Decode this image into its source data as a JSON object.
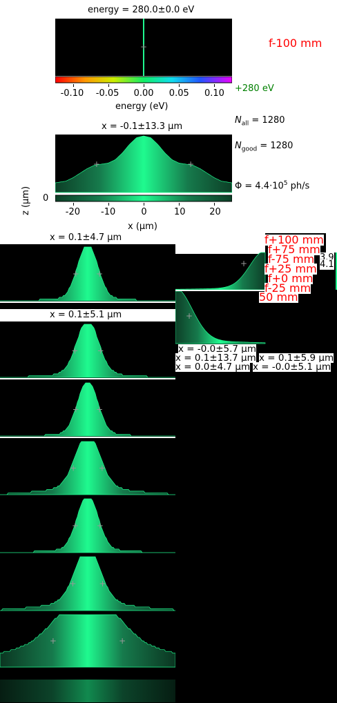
{
  "energy_title": "energy = 280.0±0.0 eV",
  "energy_axis_label": "energy (eV)",
  "energy_ticks": [
    "-0.10",
    "-0.05",
    "0.00",
    "0.05",
    "0.10"
  ],
  "focus_label": "f-100 mm",
  "energy_center_label": "+280 eV",
  "n_all": "N",
  "n_all_sub": "all",
  "n_all_value": " = 1280",
  "n_good": "N",
  "n_good_sub": "good",
  "n_good_value": " = 1280",
  "flux_prefix": "Φ = 4.4·10",
  "flux_exp": "5",
  "flux_suffix": " ph/s",
  "main_title": "x = -0.1±13.3 μm",
  "xlabel": "x (μm)",
  "ylabel": "z (μm)",
  "x_ticks": [
    "-20",
    "-10",
    "0",
    "10",
    "20"
  ],
  "z_tick": "0",
  "stack_titles": [
    "x = 0.1±4.7 μm",
    "x = 0.1±5.1 μm"
  ],
  "right_titles": [
    "x = -0.0±5.7 μm",
    "x = 0.1±13.7 μm",
    "x = 0.1±5.9 μm",
    "x = 0.0±4.7 μm",
    "x = -0.0±5.1 μm"
  ],
  "focus_labels": [
    "f+100 mm",
    "f+75 mm",
    "f-75 mm",
    "f+25 mm",
    "f+0 mm",
    "f-25 mm",
    "50 mm"
  ],
  "clipped_numbers": [
    "3.9",
    "4.1"
  ],
  "colors": {
    "beam": "#1ffa8f",
    "beam_dark": "#0e5a38",
    "red": "#ff0000",
    "green": "#008000"
  },
  "chart_data": [
    {
      "type": "heatmap",
      "title": "energy = 280.0±0.0 eV",
      "xlabel": "energy (eV)",
      "xlim": [
        -0.125,
        0.125
      ],
      "x_ticks": [
        -0.1,
        -0.05,
        0.0,
        0.05,
        0.1
      ],
      "peak_energy": 0.0,
      "colorbar": "rainbow"
    },
    {
      "type": "area",
      "title": "x = -0.1±13.3 μm",
      "xlabel": "x (μm)",
      "ylabel": "z (μm)",
      "xlim": [
        -25,
        25
      ],
      "x_ticks": [
        -20,
        -10,
        0,
        10,
        20
      ],
      "profile_x": [
        -25,
        -22,
        -20,
        -18,
        -16,
        -14,
        -12,
        -10,
        -8,
        -6,
        -4,
        -2,
        0,
        2,
        4,
        6,
        8,
        10,
        12,
        14,
        16,
        18,
        20,
        22,
        25
      ],
      "profile_y": [
        0.17,
        0.2,
        0.26,
        0.34,
        0.42,
        0.48,
        0.5,
        0.52,
        0.58,
        0.7,
        0.85,
        0.97,
        1.0,
        0.97,
        0.85,
        0.7,
        0.58,
        0.52,
        0.5,
        0.48,
        0.42,
        0.34,
        0.26,
        0.2,
        0.17
      ],
      "fwhm_markers": [
        -13.3,
        13.3
      ]
    },
    {
      "type": "area",
      "title": "x = 0.1±4.7 μm",
      "sigma": 4.7,
      "wings": 0.05,
      "markers": true
    },
    {
      "type": "area",
      "title": "x = 0.1±5.1 μm",
      "sigma": 5.1,
      "wings": 0.07,
      "markers": true
    },
    {
      "type": "area",
      "title": "",
      "sigma": 4.7,
      "wings": 0.04,
      "markers": true
    },
    {
      "type": "area",
      "title": "",
      "sigma": 5.7,
      "wings": 0.14,
      "markers": true
    },
    {
      "type": "area",
      "title": "",
      "sigma": 4.9,
      "wings": 0.06,
      "markers": true
    },
    {
      "type": "area",
      "title": "",
      "sigma": 5.9,
      "wings": 0.16,
      "markers": true
    },
    {
      "type": "area",
      "title": "",
      "sigma": 13.7,
      "wings": 0.4,
      "markers": true
    }
  ]
}
